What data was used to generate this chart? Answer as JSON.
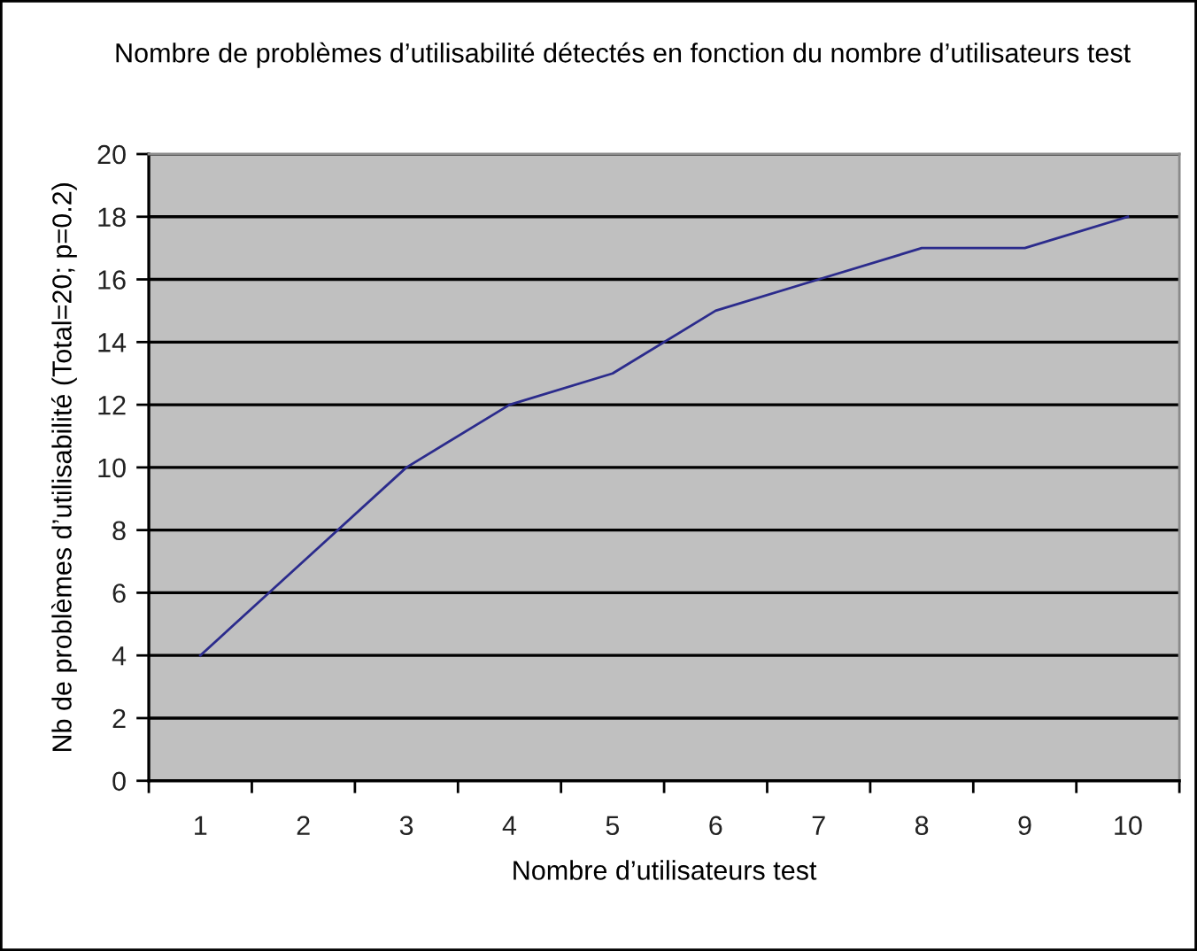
{
  "chart_data": {
    "type": "line",
    "title": "Nombre de problèmes d’utilisabilité détectés en fonction du nombre d’utilisateurs test",
    "xlabel": "Nombre d’utilisateurs test",
    "ylabel": "Nb de problèmes d’utilisabilité (Total=20; p=0.2)",
    "categories": [
      "1",
      "2",
      "3",
      "4",
      "5",
      "6",
      "7",
      "8",
      "9",
      "10"
    ],
    "series": [
      {
        "color": "#2b2b8c",
        "values": [
          4,
          7,
          10,
          12,
          13,
          15,
          16,
          17,
          17,
          18
        ]
      }
    ],
    "ylim": [
      0,
      20
    ],
    "yticks": [
      0,
      2,
      4,
      6,
      8,
      10,
      12,
      14,
      16,
      18,
      20
    ],
    "grid": "y",
    "marker": "none",
    "line_style": "solid"
  }
}
